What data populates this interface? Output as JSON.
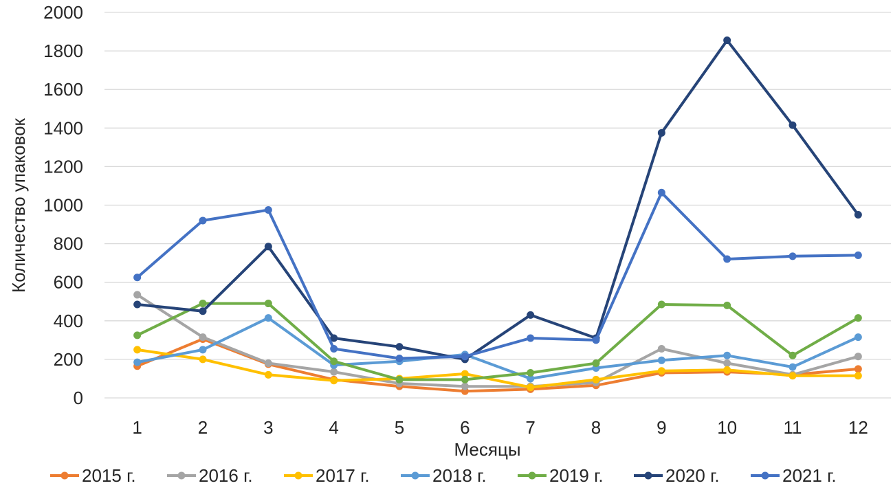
{
  "chart_data": {
    "type": "line",
    "title": "",
    "xlabel": "Месяцы",
    "ylabel": "Количество упаковок",
    "ylim": [
      0,
      2000
    ],
    "yticks": [
      "0",
      "200",
      "400",
      "600",
      "800",
      "1000",
      "1200",
      "1400",
      "1600",
      "1800",
      "2000"
    ],
    "categories": [
      "1",
      "2",
      "3",
      "4",
      "5",
      "6",
      "7",
      "8",
      "9",
      "10",
      "11",
      "12"
    ],
    "grid": "horizontal",
    "legend_position": "bottom",
    "series": [
      {
        "name": "2015 г.",
        "color": "#ED7D31",
        "values": [
          165,
          305,
          175,
          95,
          60,
          35,
          45,
          65,
          130,
          135,
          120,
          150
        ]
      },
      {
        "name": "2016 г.",
        "color": "#A5A5A5",
        "values": [
          535,
          315,
          180,
          135,
          75,
          60,
          60,
          80,
          255,
          180,
          120,
          215
        ]
      },
      {
        "name": "2017 г.",
        "color": "#FFC000",
        "values": [
          250,
          200,
          120,
          90,
          100,
          125,
          55,
          95,
          140,
          145,
          115,
          115
        ]
      },
      {
        "name": "2018 г.",
        "color": "#5B9BD5",
        "values": [
          185,
          250,
          415,
          170,
          190,
          225,
          100,
          155,
          195,
          220,
          160,
          315
        ]
      },
      {
        "name": "2019 г.",
        "color": "#70AD47",
        "values": [
          325,
          490,
          490,
          190,
          95,
          95,
          130,
          180,
          485,
          480,
          220,
          415
        ]
      },
      {
        "name": "2020 г.",
        "color": "#264478",
        "values": [
          485,
          450,
          785,
          310,
          265,
          200,
          430,
          310,
          1375,
          1855,
          1415,
          950
        ]
      },
      {
        "name": "2021 г.",
        "color": "#4472C4",
        "values": [
          625,
          920,
          975,
          255,
          205,
          215,
          310,
          300,
          1065,
          720,
          735,
          740
        ]
      }
    ]
  }
}
